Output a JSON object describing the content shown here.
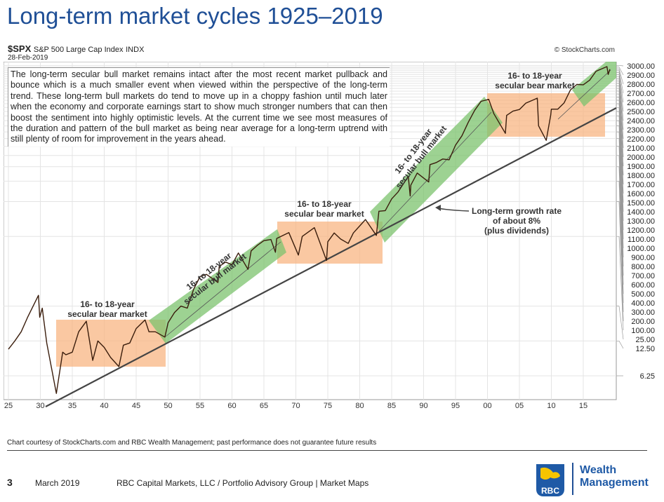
{
  "title": "Long-term market cycles 1925–2019",
  "header": {
    "symbol": "$SPX",
    "name": "S&P 500 Large Cap Index",
    "exchange": "INDX",
    "date": "28-Feb-2019",
    "credit": "© StockCharts.com"
  },
  "description": "The long-term secular bull market remains intact after the most recent market pullback and bounce which is a much smaller event when viewed within the perspective of the long-term trend. These long-term bull markets do tend to move up in a choppy fashion until much later when the economy and corporate earnings start to show much stronger numbers that can then boost the sentiment into highly optimistic levels. At the current time we see most measures of the duration and pattern of the bull market as being near average for a long-term uptrend with still plenty of room for improvement in the years ahead.",
  "chart_data": {
    "type": "line",
    "yscale": "log",
    "xlabel": "",
    "ylabel": "",
    "x_ticks": [
      "25",
      "30",
      "35",
      "40",
      "45",
      "50",
      "55",
      "60",
      "65",
      "70",
      "75",
      "80",
      "85",
      "90",
      "95",
      "00",
      "05",
      "10",
      "15"
    ],
    "y_ticks": [
      "6.25",
      "12.50",
      "25.00",
      "100.00",
      "200.00",
      "300.00",
      "400.00",
      "500.00",
      "600.00",
      "700.00",
      "800.00",
      "900.00",
      "1000.00",
      "1100.00",
      "1200.00",
      "1300.00",
      "1400.00",
      "1500.00",
      "1600.00",
      "1700.00",
      "1800.00",
      "1900.00",
      "2000.00",
      "2100.00",
      "2200.00",
      "2300.00",
      "2400.00",
      "2500.00",
      "2600.00",
      "2700.00",
      "2800.00",
      "2900.00",
      "3000.00"
    ],
    "xlim": [
      1924.3,
      2020.2
    ],
    "series": [
      {
        "x": [
          1925,
          1926,
          1927,
          1928,
          1929.7,
          1929.9,
          1930.3,
          1931,
          1932.5,
          1933.5,
          1934,
          1935,
          1936,
          1937.2,
          1938.2,
          1939,
          1940,
          1941,
          1942.3,
          1943,
          1944,
          1945,
          1946.4,
          1947,
          1948,
          1949.5,
          1950,
          1951,
          1952,
          1953,
          1954,
          1955,
          1956,
          1957.8,
          1958,
          1959,
          1960,
          1961,
          1962.5,
          1963,
          1964,
          1965,
          1966.1,
          1966.8,
          1967,
          1968.9,
          1970.4,
          1971,
          1972.9,
          1974.8,
          1975,
          1976,
          1977,
          1978.2,
          1979,
          1980.9,
          1982.6,
          1983,
          1984,
          1985,
          1986,
          1987.6,
          1987.9,
          1988,
          1989,
          1990.8,
          1991,
          1992,
          1993,
          1994,
          1995,
          1996,
          1997,
          1998,
          1999,
          2000.2,
          2001,
          2002.8,
          2003,
          2004,
          2005,
          2006,
          2007.8,
          2008,
          2009.2,
          2009.9,
          2010,
          2011,
          2012,
          2013,
          2014,
          2015,
          2016,
          2017,
          2018.7,
          2018.9,
          2019.16
        ],
        "values": [
          10.6,
          12.5,
          15,
          20,
          31,
          20,
          24,
          12,
          4.4,
          10,
          9.5,
          10,
          15,
          18.5,
          8.5,
          12.5,
          11,
          9,
          7.5,
          11.5,
          12,
          16,
          19,
          15,
          15,
          13.5,
          18,
          22,
          25,
          24,
          35,
          45,
          47,
          40,
          55,
          60,
          57,
          72,
          52,
          75,
          84,
          92,
          94,
          73,
          96,
          108,
          69,
          100,
          119,
          62,
          90,
          107,
          95,
          87,
          107,
          140,
          102,
          165,
          167,
          211,
          242,
          330,
          224,
          277,
          353,
          295,
          417,
          435,
          466,
          459,
          615,
          740,
          970,
          1229,
          1469,
          1527,
          1148,
          777,
          1111,
          1211,
          1248,
          1418,
          1565,
          903,
          676,
          1115,
          1257,
          1257,
          1426,
          1848,
          2058,
          2043,
          2238,
          2673,
          2930,
          2506,
          2784
        ]
      }
    ],
    "annotations": {
      "bear1": [
        "16- to 18-year",
        "secular bear market"
      ],
      "bull1": [
        "16- to 18-year",
        "secular bull market"
      ],
      "bear2": [
        "16- to 18-year",
        "secular bear market"
      ],
      "bull2": [
        "16- to 18-year",
        "secular bull market"
      ],
      "bear3": [
        "16- to 18-year",
        "secular bear market"
      ],
      "trend": [
        "Long-term growth rate",
        "of about 8%",
        "(plus dividends)"
      ]
    },
    "colors": {
      "bear": "#f8b683",
      "bull": "#7cc36e",
      "price": "#3a1d0c",
      "trend": "#444444"
    }
  },
  "footer": {
    "note": "Chart courtesy of StockCharts.com and RBC Wealth Management; past performance does not guarantee future results",
    "page": "3",
    "month": "March 2019",
    "firm": "RBC Capital Markets, LLC / Portfolio Advisory Group  |  Market Maps",
    "logo_text": "RBC",
    "brand": [
      "Wealth",
      "Management"
    ]
  }
}
